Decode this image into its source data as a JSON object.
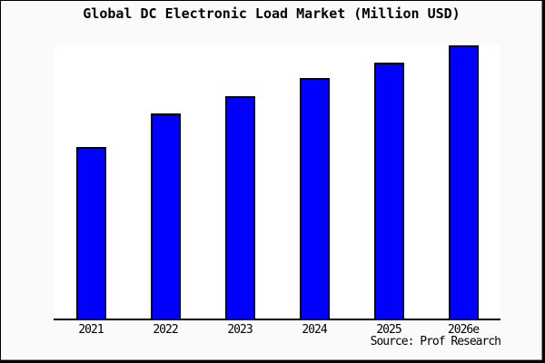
{
  "window": {
    "background_color": "#fafafa",
    "frame_border_color": "#000000",
    "frame_shadow_color": "#909090"
  },
  "source_credit": "Source: Prof Research",
  "chart_data": {
    "type": "bar",
    "title": "Global DC Electronic Load Market (Million USD)",
    "categories": [
      "2021",
      "2022",
      "2023",
      "2024",
      "2025",
      "2026e"
    ],
    "values": [
      62.9,
      75.2,
      81.5,
      87.9,
      93.8,
      100
    ],
    "xlabel": "",
    "ylabel": "",
    "ylim": [
      0,
      100
    ],
    "y_axis_labels_shown": false,
    "grid": false,
    "legend": false,
    "bar_color": "#0000ff",
    "bar_border_color": "#000000",
    "plot_background": "#ffffff",
    "axis_line_color": "#000000"
  }
}
